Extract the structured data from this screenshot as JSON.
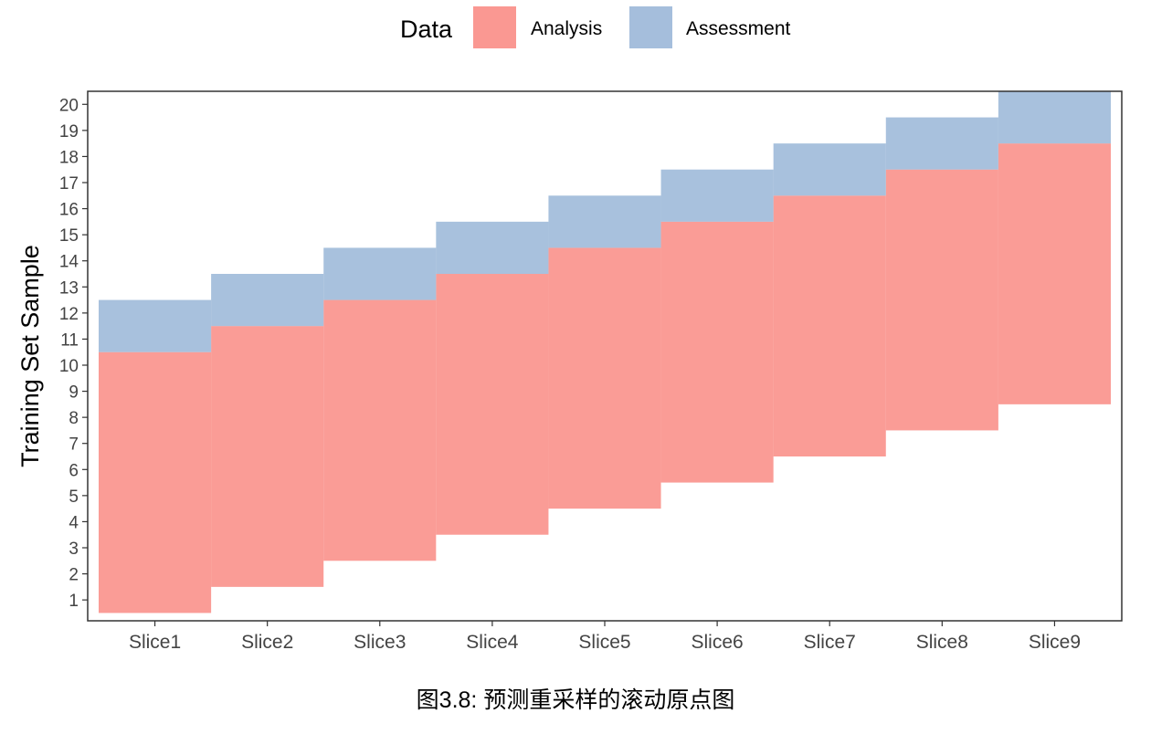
{
  "chart_data": {
    "type": "tile",
    "title": "",
    "caption": "图3.8: 预测重采样的滚动原点图",
    "xlabel": "",
    "ylabel": "Training Set Sample",
    "categories": [
      "Slice1",
      "Slice2",
      "Slice3",
      "Slice4",
      "Slice5",
      "Slice6",
      "Slice7",
      "Slice8",
      "Slice9"
    ],
    "y_ticks": [
      1,
      2,
      3,
      4,
      5,
      6,
      7,
      8,
      9,
      10,
      11,
      12,
      13,
      14,
      15,
      16,
      17,
      18,
      19,
      20
    ],
    "ylim": [
      0.2,
      20.5
    ],
    "legend": {
      "title": "Data",
      "position": "top",
      "entries": [
        {
          "name": "Analysis",
          "color": "#f8766d"
        },
        {
          "name": "Assessment",
          "color": "#7fa3cd"
        }
      ]
    },
    "series": [
      {
        "name": "Analysis",
        "color": "#f8766d",
        "ranges": [
          [
            1,
            10
          ],
          [
            2,
            11
          ],
          [
            3,
            12
          ],
          [
            4,
            13
          ],
          [
            5,
            14
          ],
          [
            6,
            15
          ],
          [
            7,
            16
          ],
          [
            8,
            17
          ],
          [
            9,
            18
          ]
        ]
      },
      {
        "name": "Assessment",
        "color": "#7fa3cd",
        "ranges": [
          [
            11,
            12
          ],
          [
            12,
            13
          ],
          [
            13,
            14
          ],
          [
            14,
            15
          ],
          [
            15,
            16
          ],
          [
            16,
            17
          ],
          [
            17,
            18
          ],
          [
            18,
            19
          ],
          [
            19,
            20
          ]
        ]
      }
    ],
    "grid": false
  }
}
